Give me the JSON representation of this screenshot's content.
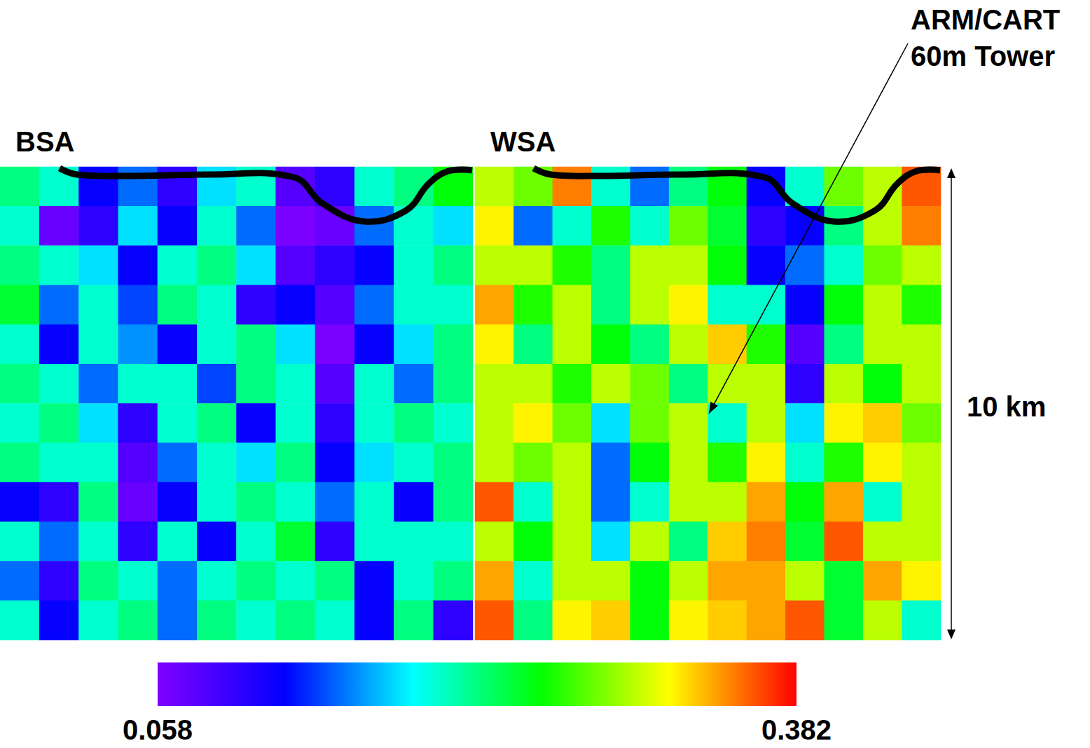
{
  "chart_data": {
    "type": "heatmap",
    "tick_labels": false,
    "panels": [
      {
        "title": "BSA",
        "cells": [
          [
            0.22,
            0.2,
            0.12,
            0.15,
            0.1,
            0.18,
            0.2,
            0.08,
            0.1,
            0.2,
            0.22,
            0.25
          ],
          [
            0.2,
            0.07,
            0.1,
            0.18,
            0.12,
            0.2,
            0.15,
            0.06,
            0.07,
            0.15,
            0.2,
            0.18
          ],
          [
            0.22,
            0.2,
            0.18,
            0.12,
            0.2,
            0.22,
            0.18,
            0.08,
            0.1,
            0.12,
            0.2,
            0.22
          ],
          [
            0.24,
            0.15,
            0.2,
            0.14,
            0.22,
            0.2,
            0.1,
            0.12,
            0.08,
            0.15,
            0.2,
            0.2
          ],
          [
            0.2,
            0.12,
            0.2,
            0.16,
            0.12,
            0.2,
            0.22,
            0.18,
            0.06,
            0.12,
            0.18,
            0.22
          ],
          [
            0.22,
            0.2,
            0.15,
            0.2,
            0.2,
            0.14,
            0.22,
            0.2,
            0.08,
            0.2,
            0.15,
            0.22
          ],
          [
            0.2,
            0.22,
            0.18,
            0.1,
            0.2,
            0.22,
            0.12,
            0.2,
            0.1,
            0.2,
            0.22,
            0.2
          ],
          [
            0.22,
            0.2,
            0.2,
            0.08,
            0.15,
            0.2,
            0.18,
            0.22,
            0.12,
            0.18,
            0.2,
            0.22
          ],
          [
            0.12,
            0.1,
            0.22,
            0.07,
            0.12,
            0.2,
            0.22,
            0.2,
            0.15,
            0.2,
            0.12,
            0.22
          ],
          [
            0.2,
            0.15,
            0.2,
            0.1,
            0.2,
            0.12,
            0.2,
            0.24,
            0.1,
            0.2,
            0.2,
            0.2
          ],
          [
            0.15,
            0.1,
            0.22,
            0.2,
            0.15,
            0.2,
            0.22,
            0.2,
            0.22,
            0.12,
            0.2,
            0.22
          ],
          [
            0.2,
            0.12,
            0.2,
            0.22,
            0.15,
            0.22,
            0.2,
            0.22,
            0.2,
            0.12,
            0.22,
            0.1
          ]
        ]
      },
      {
        "title": "WSA",
        "cells": [
          [
            0.3,
            0.28,
            0.35,
            0.2,
            0.15,
            0.22,
            0.25,
            0.12,
            0.2,
            0.28,
            0.3,
            0.36
          ],
          [
            0.32,
            0.15,
            0.2,
            0.26,
            0.2,
            0.28,
            0.24,
            0.1,
            0.12,
            0.22,
            0.3,
            0.35
          ],
          [
            0.3,
            0.3,
            0.26,
            0.22,
            0.3,
            0.3,
            0.25,
            0.12,
            0.15,
            0.2,
            0.28,
            0.3
          ],
          [
            0.34,
            0.26,
            0.3,
            0.22,
            0.3,
            0.32,
            0.2,
            0.2,
            0.12,
            0.25,
            0.3,
            0.26
          ],
          [
            0.32,
            0.22,
            0.3,
            0.25,
            0.22,
            0.3,
            0.33,
            0.26,
            0.08,
            0.22,
            0.3,
            0.3
          ],
          [
            0.3,
            0.3,
            0.26,
            0.3,
            0.28,
            0.22,
            0.3,
            0.3,
            0.1,
            0.3,
            0.25,
            0.3
          ],
          [
            0.3,
            0.32,
            0.28,
            0.18,
            0.28,
            0.3,
            0.2,
            0.3,
            0.18,
            0.32,
            0.33,
            0.28
          ],
          [
            0.3,
            0.28,
            0.3,
            0.15,
            0.25,
            0.3,
            0.26,
            0.32,
            0.2,
            0.26,
            0.32,
            0.3
          ],
          [
            0.36,
            0.2,
            0.3,
            0.15,
            0.2,
            0.3,
            0.3,
            0.34,
            0.25,
            0.34,
            0.2,
            0.3
          ],
          [
            0.3,
            0.25,
            0.3,
            0.18,
            0.3,
            0.22,
            0.33,
            0.35,
            0.24,
            0.36,
            0.3,
            0.3
          ],
          [
            0.34,
            0.2,
            0.3,
            0.3,
            0.25,
            0.3,
            0.34,
            0.34,
            0.3,
            0.24,
            0.34,
            0.32
          ],
          [
            0.36,
            0.22,
            0.32,
            0.33,
            0.25,
            0.32,
            0.33,
            0.34,
            0.36,
            0.24,
            0.3,
            0.2
          ]
        ]
      }
    ],
    "colorbar": {
      "range": [
        0.058,
        0.382
      ],
      "ticks": [
        0.058,
        0.382
      ]
    },
    "annotations": [
      {
        "lines": [
          "ARM/CART",
          "60m Tower"
        ]
      },
      {
        "lines": [
          "10 km"
        ]
      }
    ]
  }
}
